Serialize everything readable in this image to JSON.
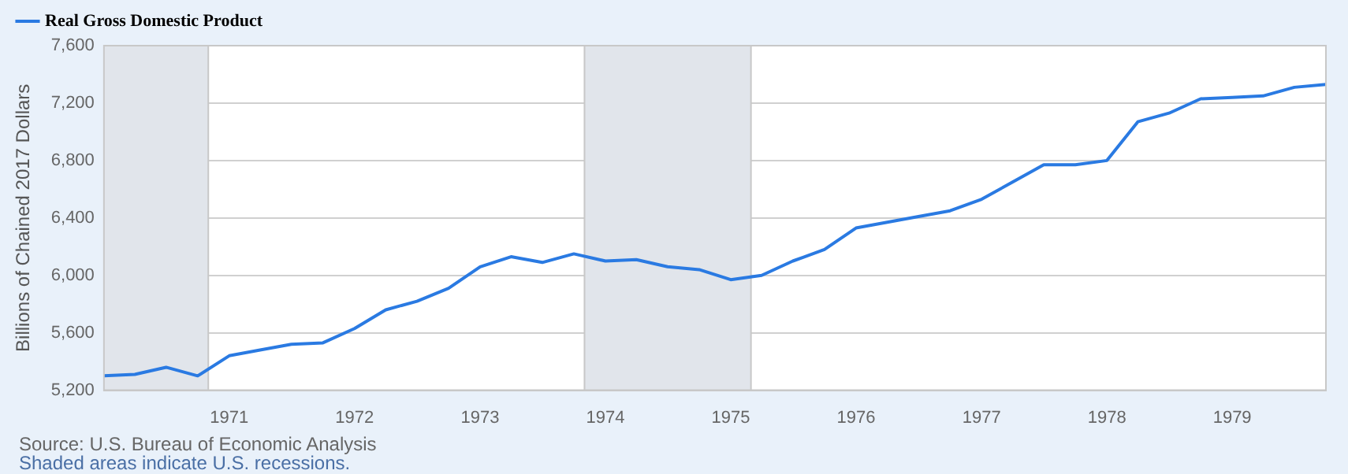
{
  "chart_data": {
    "type": "line",
    "ylabel": "Billions of Chained 2017 Dollars",
    "x": [
      "1970-01",
      "1970-04",
      "1970-07",
      "1970-10",
      "1971-01",
      "1971-04",
      "1971-07",
      "1971-10",
      "1972-01",
      "1972-04",
      "1972-07",
      "1972-10",
      "1973-01",
      "1973-04",
      "1973-07",
      "1973-10",
      "1974-01",
      "1974-04",
      "1974-07",
      "1974-10",
      "1975-01",
      "1975-04",
      "1975-07",
      "1975-10",
      "1976-01",
      "1976-04",
      "1976-07",
      "1976-10",
      "1977-01",
      "1977-04",
      "1977-07",
      "1977-10",
      "1978-01",
      "1978-04",
      "1978-07",
      "1978-10",
      "1979-01",
      "1979-04",
      "1979-07",
      "1979-10"
    ],
    "series": [
      {
        "name": "Real Gross Domestic Product",
        "color": "#2a7ae2",
        "values": [
          5300,
          5310,
          5360,
          5300,
          5440,
          5480,
          5520,
          5530,
          5630,
          5760,
          5820,
          5910,
          6060,
          6130,
          6090,
          6150,
          6100,
          6110,
          6060,
          6040,
          5970,
          6000,
          6100,
          6180,
          6330,
          6370,
          6410,
          6450,
          6530,
          6650,
          6770,
          6770,
          6800,
          7070,
          7130,
          7230,
          7240,
          7250,
          7310,
          7330
        ]
      }
    ],
    "xlim": [
      "1970-01",
      "1979-10"
    ],
    "xticks": [
      {
        "value": "1971-01",
        "label": "1971"
      },
      {
        "value": "1972-01",
        "label": "1972"
      },
      {
        "value": "1973-01",
        "label": "1973"
      },
      {
        "value": "1974-01",
        "label": "1974"
      },
      {
        "value": "1975-01",
        "label": "1975"
      },
      {
        "value": "1976-01",
        "label": "1976"
      },
      {
        "value": "1977-01",
        "label": "1977"
      },
      {
        "value": "1978-01",
        "label": "1978"
      },
      {
        "value": "1979-01",
        "label": "1979"
      }
    ],
    "ylim": [
      5200,
      7600
    ],
    "yticks": [
      {
        "value": 5200,
        "label": "5,200"
      },
      {
        "value": 5600,
        "label": "5,600"
      },
      {
        "value": 6000,
        "label": "6,000"
      },
      {
        "value": 6400,
        "label": "6,400"
      },
      {
        "value": 6800,
        "label": "6,800"
      },
      {
        "value": 7200,
        "label": "7,200"
      },
      {
        "value": 7600,
        "label": "7,600"
      }
    ],
    "bands": [
      {
        "axis": "x",
        "from": "1970-01",
        "to": "1970-11",
        "color": "#e1e5eb"
      },
      {
        "axis": "x",
        "from": "1973-11",
        "to": "1975-03",
        "color": "#e1e5eb"
      }
    ],
    "grid": "y",
    "legend": "top left",
    "marker": "none",
    "line_style": "solid",
    "annotations": [
      "Source: U.S. Bureau of Economic Analysis",
      "Shaded areas indicate U.S. recessions."
    ]
  }
}
